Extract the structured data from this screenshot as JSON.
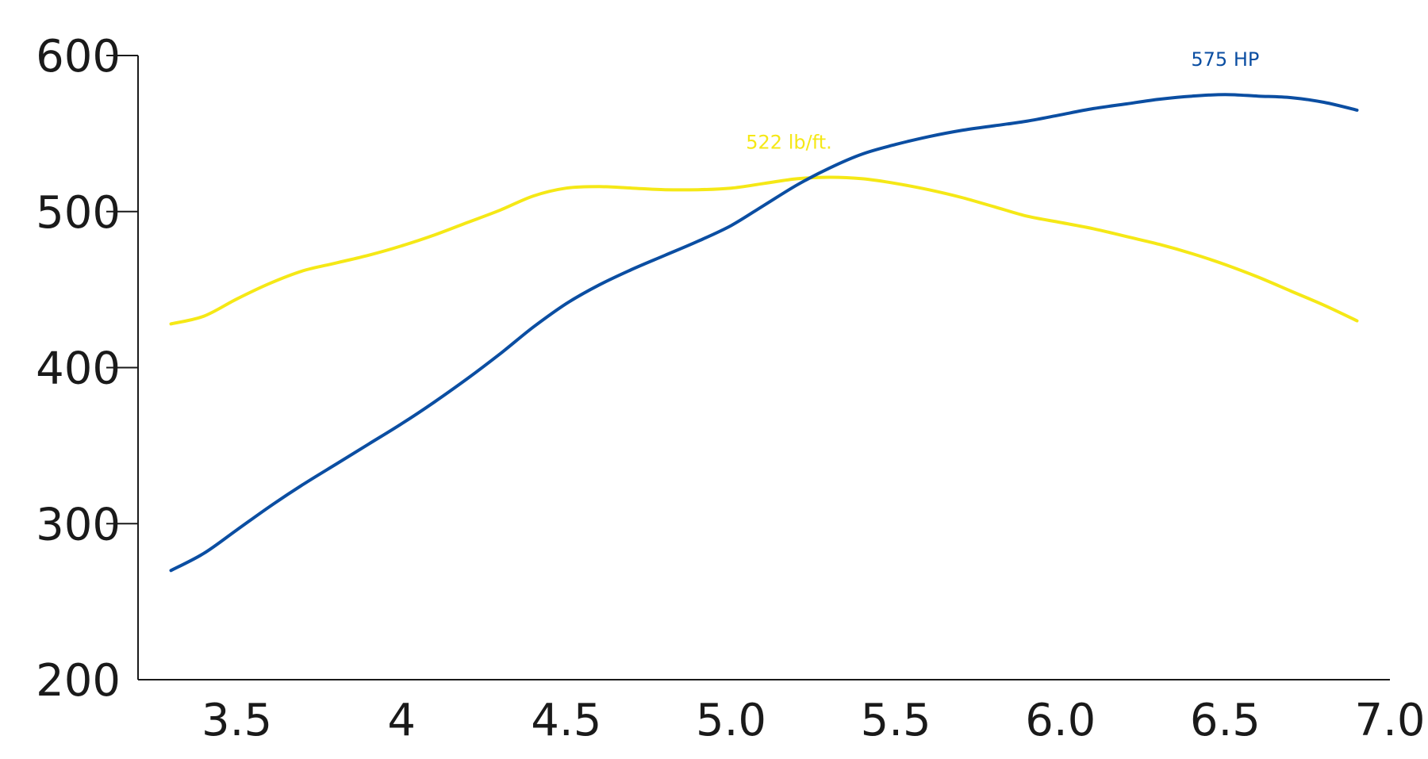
{
  "chart_data": {
    "type": "line",
    "x_ticks": [
      "3.5",
      "4",
      "4.5",
      "5.0",
      "5.5",
      "6.0",
      "6.5",
      "7.0"
    ],
    "y_ticks": [
      "200",
      "300",
      "400",
      "500",
      "600"
    ],
    "xlim": [
      3.2,
      7.0
    ],
    "ylim": [
      200,
      600
    ],
    "grid": false,
    "series": [
      {
        "color": "#f5e816",
        "x": [
          3.3,
          3.4,
          3.5,
          3.6,
          3.7,
          3.8,
          3.9,
          4.0,
          4.1,
          4.2,
          4.3,
          4.4,
          4.5,
          4.6,
          4.7,
          4.8,
          4.9,
          5.0,
          5.1,
          5.2,
          5.3,
          5.4,
          5.5,
          5.6,
          5.7,
          5.8,
          5.9,
          6.0,
          6.1,
          6.2,
          6.3,
          6.4,
          6.5,
          6.6,
          6.7,
          6.8,
          6.9
        ],
        "y": [
          428,
          433,
          444,
          454,
          462,
          467,
          472,
          478,
          485,
          493,
          501,
          510,
          515,
          516,
          515,
          514,
          514,
          515,
          518,
          521,
          522,
          521,
          518,
          514,
          509,
          503,
          497,
          493,
          489,
          484,
          479,
          473,
          466,
          458,
          449,
          440,
          430
        ]
      },
      {
        "color": "#0b4ea2",
        "x": [
          3.3,
          3.4,
          3.5,
          3.6,
          3.7,
          3.8,
          3.9,
          4.0,
          4.1,
          4.2,
          4.3,
          4.4,
          4.5,
          4.6,
          4.7,
          4.8,
          4.9,
          5.0,
          5.1,
          5.2,
          5.3,
          5.4,
          5.5,
          5.6,
          5.7,
          5.8,
          5.9,
          6.0,
          6.1,
          6.2,
          6.3,
          6.4,
          6.5,
          6.6,
          6.7,
          6.8,
          6.9
        ],
        "y": [
          270,
          281,
          296,
          311,
          325,
          338,
          351,
          364,
          378,
          393,
          409,
          426,
          441,
          453,
          463,
          472,
          481,
          491,
          504,
          517,
          528,
          537,
          543,
          548,
          552,
          555,
          558,
          562,
          566,
          569,
          572,
          574,
          575,
          574,
          573,
          570,
          565
        ]
      }
    ],
    "annotations": [
      {
        "text": "522 lb/ft.",
        "color": "#f5e816",
        "x": 5.2,
        "y": 522
      },
      {
        "text": "575 HP",
        "color": "#0b4ea2",
        "x": 6.5,
        "y": 575
      }
    ]
  }
}
